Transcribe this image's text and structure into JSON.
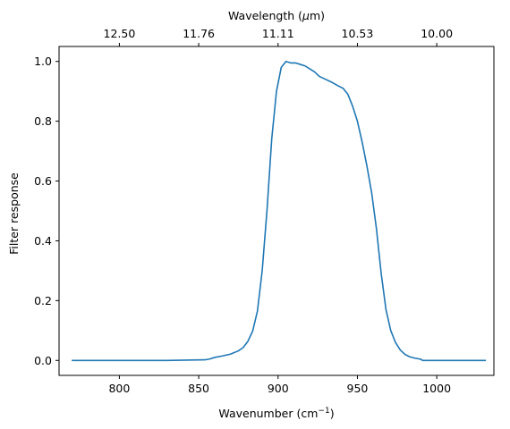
{
  "chart_data": {
    "type": "line",
    "xlabel": "Wavenumber (cm",
    "xlabel_superscript": "−1",
    "xlabel_close": ")",
    "ylabel": "Filter response",
    "top_xlabel_prefix": "Wavelength (",
    "top_xlabel_mu": "μ",
    "top_xlabel_suffix": "m)",
    "xlim": [
      762,
      1036
    ],
    "ylim": [
      -0.05,
      1.05
    ],
    "x_ticks": [
      800,
      850,
      900,
      950,
      1000
    ],
    "y_ticks": [
      0.0,
      0.2,
      0.4,
      0.6,
      0.8,
      1.0
    ],
    "y_tick_labels": [
      "0.0",
      "0.2",
      "0.4",
      "0.6",
      "0.8",
      "1.0"
    ],
    "top_ticks": [
      {
        "label": "12.50",
        "value": 800
      },
      {
        "label": "11.76",
        "value": 850
      },
      {
        "label": "11.11",
        "value": 900
      },
      {
        "label": "10.53",
        "value": 950
      },
      {
        "label": "10.00",
        "value": 1000
      }
    ],
    "grid": false,
    "line_color": "#1f77b4",
    "series": [
      {
        "x": [
          770,
          800,
          830,
          854,
          857,
          860,
          865,
          870,
          875,
          878,
          881,
          884,
          887,
          890,
          893,
          896,
          899,
          902,
          905,
          908,
          911,
          914,
          917,
          920,
          923,
          926,
          930,
          934,
          938,
          941,
          944,
          947,
          950,
          953,
          956,
          959,
          962,
          965,
          968,
          971,
          974,
          977,
          980,
          983,
          986,
          989,
          990,
          991,
          1000,
          1031
        ],
        "y": [
          0.0,
          0.0,
          0.0,
          0.002,
          0.005,
          0.01,
          0.015,
          0.021,
          0.032,
          0.043,
          0.064,
          0.098,
          0.165,
          0.3,
          0.5,
          0.74,
          0.9,
          0.98,
          1.0,
          0.995,
          0.995,
          0.99,
          0.985,
          0.975,
          0.965,
          0.95,
          0.94,
          0.93,
          0.918,
          0.91,
          0.89,
          0.85,
          0.8,
          0.73,
          0.65,
          0.56,
          0.44,
          0.29,
          0.17,
          0.1,
          0.06,
          0.035,
          0.02,
          0.012,
          0.008,
          0.005,
          0.004,
          0.0,
          0.0,
          0.0
        ]
      }
    ]
  }
}
